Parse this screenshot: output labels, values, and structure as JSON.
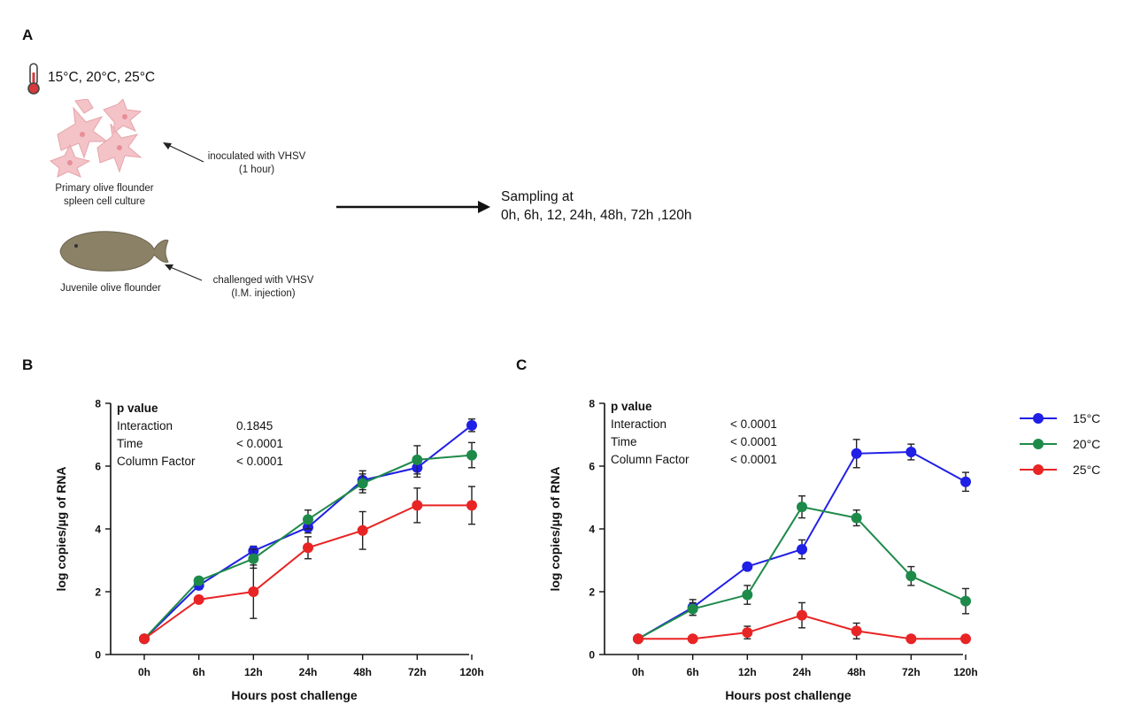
{
  "panel_a": {
    "letter": "A",
    "temperatures": "15°C, 20°C, 25°C",
    "cell_label": [
      "Primary olive flounder",
      "spleen cell culture"
    ],
    "cell_note": [
      "inoculated with VHSV",
      "(1 hour)"
    ],
    "fish_label": "Juvenile olive flounder",
    "fish_note": [
      "challenged with VHSV",
      "(I.M. injection)"
    ],
    "sampling": [
      "Sampling at",
      "0h, 6h, 12, 24h, 48h, 72h ,120h"
    ]
  },
  "legend": {
    "items": [
      {
        "label": "15°C",
        "color": "#1f1fe6"
      },
      {
        "label": "20°C",
        "color": "#1e8a4a"
      },
      {
        "label": "25°C",
        "color": "#e82424"
      }
    ]
  },
  "chart_data": [
    {
      "panel": "B",
      "type": "line",
      "xlabel": "Hours post challenge",
      "ylabel": "log copies/µg of RNA",
      "ylim": [
        0,
        8
      ],
      "yticks": [
        "0",
        "2",
        "4",
        "6",
        "8"
      ],
      "categories": [
        "0h",
        "6h",
        "12h",
        "24h",
        "48h",
        "72h",
        "120h"
      ],
      "pvalue": {
        "title": "p value",
        "rows": [
          {
            "label": "Interaction",
            "value": "0.1845"
          },
          {
            "label": "Time",
            "value": "< 0.0001"
          },
          {
            "label": "Column Factor",
            "value": "< 0.0001"
          }
        ]
      },
      "series": [
        {
          "name": "15°C",
          "color": "#1f1fe6",
          "values": [
            0.5,
            2.2,
            3.3,
            4.05,
            5.55,
            5.95,
            7.3
          ],
          "errors": [
            0,
            0.12,
            0.15,
            0.18,
            0.3,
            0.3,
            0.2
          ]
        },
        {
          "name": "20°C",
          "color": "#1e8a4a",
          "values": [
            0.5,
            2.35,
            3.05,
            4.3,
            5.45,
            6.2,
            6.35
          ],
          "errors": [
            0,
            0.1,
            0.3,
            0.3,
            0.3,
            0.45,
            0.4
          ]
        },
        {
          "name": "25°C",
          "color": "#e82424",
          "values": [
            0.5,
            1.75,
            2.0,
            3.4,
            3.95,
            4.75,
            4.75
          ],
          "errors": [
            0,
            0.08,
            0.85,
            0.35,
            0.6,
            0.55,
            0.6
          ]
        }
      ]
    },
    {
      "panel": "C",
      "type": "line",
      "xlabel": "Hours post challenge",
      "ylabel": "log copies/µg of RNA",
      "ylim": [
        0,
        8
      ],
      "yticks": [
        "0",
        "2",
        "4",
        "6",
        "8"
      ],
      "categories": [
        "0h",
        "6h",
        "12h",
        "24h",
        "48h",
        "72h",
        "120h"
      ],
      "pvalue": {
        "title": "p value",
        "rows": [
          {
            "label": "Interaction",
            "value": "< 0.0001"
          },
          {
            "label": "Time",
            "value": "< 0.0001"
          },
          {
            "label": "Column Factor",
            "value": "< 0.0001"
          }
        ]
      },
      "series": [
        {
          "name": "15°C",
          "color": "#1f1fe6",
          "values": [
            0.5,
            1.5,
            2.8,
            3.35,
            6.4,
            6.45,
            5.5
          ],
          "errors": [
            0,
            0.25,
            0.1,
            0.3,
            0.45,
            0.25,
            0.3
          ]
        },
        {
          "name": "20°C",
          "color": "#1e8a4a",
          "values": [
            0.5,
            1.45,
            1.9,
            4.7,
            4.35,
            2.5,
            1.7
          ],
          "errors": [
            0,
            0.2,
            0.3,
            0.35,
            0.25,
            0.3,
            0.4
          ]
        },
        {
          "name": "25°C",
          "color": "#e82424",
          "values": [
            0.5,
            0.5,
            0.7,
            1.25,
            0.75,
            0.5,
            0.5
          ],
          "errors": [
            0,
            0.05,
            0.2,
            0.4,
            0.25,
            0.05,
            0.05
          ]
        }
      ]
    }
  ]
}
